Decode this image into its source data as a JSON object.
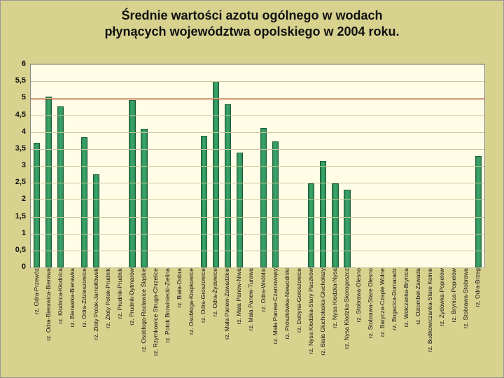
{
  "title_line1": "Średnie wartości azotu ogólnego w wodach",
  "title_line2": "płynących województwa opolskiego w 2004 roku.",
  "chart": {
    "type": "bar",
    "background_color": "#fffde6",
    "frame_background": "#d8d28f",
    "grid_color": "#c9c79c",
    "bar_fill": "#3aa76a",
    "bar_border": "#1e5c3a",
    "threshold_color": "#d9261c",
    "threshold_value": 5,
    "ylim": [
      0,
      6
    ],
    "ytick_step": 0.5,
    "ytick_labels": [
      "0",
      "0,5",
      "1",
      "1,5",
      "2",
      "2,5",
      "3",
      "3,5",
      "4",
      "4,5",
      "5",
      "5,5",
      "6"
    ],
    "bar_width_ratio": 0.55,
    "title_fontsize": 18,
    "ytick_fontsize": 11,
    "xlabel_fontsize": 8.5,
    "categories": [
      "rz. Odra-Przewóz",
      "rz. Odra-Bierawica-Bierawa",
      "rz. Kłodnica-Kłodnica",
      "rz. Bierawka-Bierawka",
      "rz. Odra-Zdzieszowice",
      "rz. Złoty Potok-Jarnołtówek",
      "rz. Złoty Potok-Prudnik",
      "rz. Prudnik-Prudnik",
      "rz. Prudnik-Dytmarów",
      "rz. Osobłoga-Racławice Śląskie",
      "rz. Rzymkowice Struga-Chrzelice",
      "rz. Potok Browiniecki-Zielina",
      "rz. Biała-Dobra",
      "rz. Osobłoga-Krapkowice",
      "rz. Odra-Groszowice",
      "rz. Odra-Żydowice",
      "rz. Mała Panew-Zawadzkie",
      "rz. Mała Panew-Niwa",
      "rz. Mała Panew-Turawa",
      "rz. Odra-Wróblin",
      "rz. Mała Panew-Czarnowąsy",
      "rz. Prószkówka-Niewodniki",
      "rz. Dobyna-Goloszowice",
      "rz. Nysa Kłodzka-Stary Paczków",
      "rz. Biała Głuchołaska-Głuchołazy",
      "rz. Nysa Kłodzka-Nysa",
      "rz. Nysa Kłodzka-Skorogoszcz",
      "rz. Stobrawa-Olesno",
      "rz. Stobrawa-Stare Olesno",
      "rz. Barycza-Czaple Wolne",
      "rz. Bogacica-Domaradz",
      "rz. Wołczanka-Brynica",
      "rz. Oziombel-Zawada",
      "rz. Budkowiczanka-Stare Kolnie",
      "rz. Żydówka-Popielów",
      "rz. Brynica-Popielów",
      "rz. Stobrawa-Stobrawa",
      "rz. Odra-Brzeg"
    ],
    "values": [
      3.68,
      5.05,
      4.75,
      0,
      3.85,
      2.75,
      0,
      0,
      4.95,
      4.1,
      0,
      0,
      0,
      0,
      3.9,
      5.5,
      4.82,
      3.4,
      0,
      4.12,
      3.72,
      0,
      0,
      2.48,
      3.15,
      2.48,
      2.3,
      0,
      0,
      0,
      0,
      0,
      0,
      0,
      0,
      0,
      0,
      3.3
    ]
  }
}
